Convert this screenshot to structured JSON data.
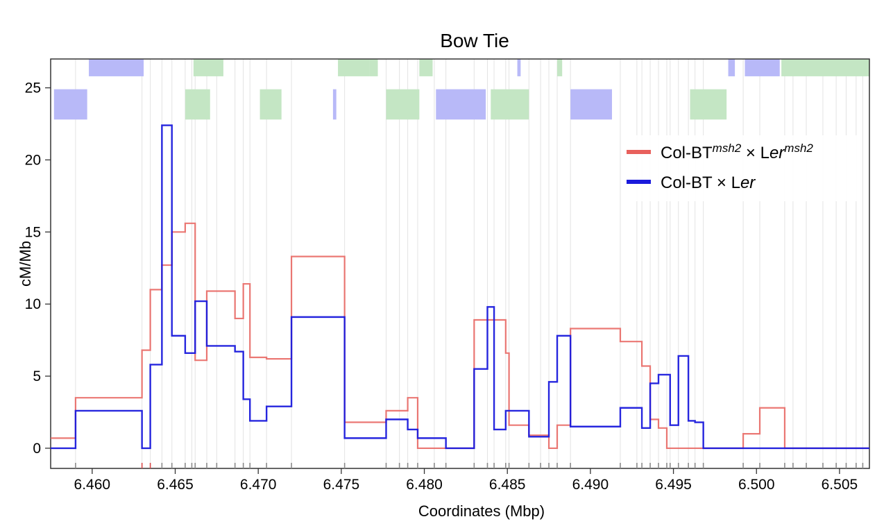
{
  "chart_data": {
    "type": "line",
    "title": "Bow Tie",
    "xlabel": "Coordinates (Mbp)",
    "ylabel": "cM/Mb",
    "xlim": [
      6.4575,
      6.5068
    ],
    "ylim": [
      -1.4,
      27
    ],
    "x_ticks": [
      6.46,
      6.465,
      6.47,
      6.475,
      6.48,
      6.485,
      6.49,
      6.495,
      6.5,
      6.505
    ],
    "x_tick_labels": [
      "6.460",
      "6.465",
      "6.470",
      "6.475",
      "6.480",
      "6.485",
      "6.490",
      "6.495",
      "6.500",
      "6.505"
    ],
    "y_ticks": [
      0,
      5,
      10,
      15,
      20,
      25
    ],
    "y_tick_labels": [
      "0",
      "5",
      "10",
      "15",
      "20",
      "25"
    ],
    "legend_position": "upper-right",
    "series": [
      {
        "name": "Col-BT",
        "name_sup": "msh2",
        "name_mid": " × L",
        "name_italic": "er",
        "name_sup2": "msh2",
        "color": "#e8605c",
        "x": [
          6.4575,
          6.459,
          6.463,
          6.4635,
          6.4642,
          6.4648,
          6.4656,
          6.4662,
          6.4669,
          6.4686,
          6.4691,
          6.4695,
          6.4705,
          6.472,
          6.4752,
          6.4777,
          6.479,
          6.4796,
          6.4813,
          6.483,
          6.4842,
          6.4849,
          6.4851,
          6.4863,
          6.4875,
          6.488,
          6.4888,
          6.4918,
          6.4931,
          6.4936,
          6.4941,
          6.4946,
          6.4992,
          6.5002,
          6.5017,
          6.5068
        ],
        "y": [
          0.7,
          3.5,
          6.8,
          11,
          12.7,
          15,
          15.6,
          6.1,
          10.9,
          9,
          11.4,
          6.3,
          6.2,
          13.3,
          1.8,
          2.6,
          3.5,
          0,
          0,
          8.9,
          8.9,
          6.6,
          1.6,
          0.9,
          0,
          1.6,
          8.3,
          7.4,
          5.7,
          2,
          1.4,
          0,
          1,
          2.8,
          0,
          0
        ]
      },
      {
        "name": "Col-BT",
        "name_sup": "",
        "name_mid": " × L",
        "name_italic": "er",
        "name_sup2": "",
        "color": "#1a1adc",
        "x": [
          6.4575,
          6.459,
          6.463,
          6.4635,
          6.4642,
          6.4648,
          6.4656,
          6.4662,
          6.4669,
          6.4686,
          6.4691,
          6.4695,
          6.4705,
          6.472,
          6.4752,
          6.4777,
          6.479,
          6.4796,
          6.4813,
          6.483,
          6.4838,
          6.4842,
          6.4849,
          6.4863,
          6.4875,
          6.488,
          6.4888,
          6.4918,
          6.4931,
          6.4936,
          6.4941,
          6.4948,
          6.4953,
          6.4959,
          6.4963,
          6.4968,
          6.5068
        ],
        "y": [
          0,
          2.6,
          0,
          5.8,
          22.4,
          7.8,
          6.6,
          10.2,
          7.1,
          6.7,
          3.4,
          1.9,
          2.9,
          9.1,
          0.7,
          2,
          1.3,
          0.7,
          0,
          5.5,
          9.8,
          1.3,
          2.6,
          0.8,
          4.6,
          7.8,
          1.5,
          2.8,
          1.4,
          4.5,
          5.1,
          1.6,
          6.4,
          1.9,
          1.8,
          0,
          0
        ]
      }
    ],
    "top_blocks": {
      "upper_row": [
        {
          "x0": 6.4598,
          "x1": 6.4631,
          "color": "#b8b9f8"
        },
        {
          "x0": 6.4661,
          "x1": 6.4679,
          "color": "#c4e6c4"
        },
        {
          "x0": 6.4748,
          "x1": 6.4767,
          "color": "#c4e6c4"
        },
        {
          "x0": 6.4767,
          "x1": 6.4772,
          "color": "#c4e6c4"
        },
        {
          "x0": 6.4797,
          "x1": 6.4805,
          "color": "#c4e6c4"
        },
        {
          "x0": 6.4856,
          "x1": 6.4858,
          "color": "#b8b9f8"
        },
        {
          "x0": 6.488,
          "x1": 6.4883,
          "color": "#c4e6c4"
        },
        {
          "x0": 6.4983,
          "x1": 6.4987,
          "color": "#b8b9f8"
        },
        {
          "x0": 6.4993,
          "x1": 6.5014,
          "color": "#b8b9f8"
        },
        {
          "x0": 6.5015,
          "x1": 6.5068,
          "color": "#c4e6c4"
        }
      ],
      "lower_row": [
        {
          "x0": 6.4577,
          "x1": 6.4597,
          "color": "#b8b9f8"
        },
        {
          "x0": 6.4656,
          "x1": 6.4671,
          "color": "#c4e6c4"
        },
        {
          "x0": 6.4701,
          "x1": 6.4714,
          "color": "#c4e6c4"
        },
        {
          "x0": 6.4745,
          "x1": 6.4747,
          "color": "#b8b9f8"
        },
        {
          "x0": 6.4777,
          "x1": 6.4797,
          "color": "#c4e6c4"
        },
        {
          "x0": 6.4807,
          "x1": 6.4837,
          "color": "#b8b9f8"
        },
        {
          "x0": 6.484,
          "x1": 6.4863,
          "color": "#c4e6c4"
        },
        {
          "x0": 6.4888,
          "x1": 6.4913,
          "color": "#b8b9f8"
        },
        {
          "x0": 6.496,
          "x1": 6.4982,
          "color": "#c4e6c4"
        }
      ]
    },
    "marker_positions": [
      6.459,
      6.463,
      6.4635,
      6.4642,
      6.4648,
      6.4656,
      6.466,
      6.4662,
      6.4669,
      6.4675,
      6.4686,
      6.4691,
      6.4695,
      6.4705,
      6.472,
      6.4752,
      6.4777,
      6.4785,
      6.479,
      6.4796,
      6.4806,
      6.4813,
      6.483,
      6.4838,
      6.4842,
      6.4849,
      6.4851,
      6.4863,
      6.487,
      6.4875,
      6.488,
      6.4888,
      6.4918,
      6.4928,
      6.4931,
      6.4936,
      6.4941,
      6.4946,
      6.4948,
      6.4953,
      6.4959,
      6.4963,
      6.4968,
      6.4992,
      6.5002,
      6.5017,
      6.5022,
      6.503,
      6.504,
      6.5048,
      6.5054,
      6.506,
      6.5064
    ]
  }
}
